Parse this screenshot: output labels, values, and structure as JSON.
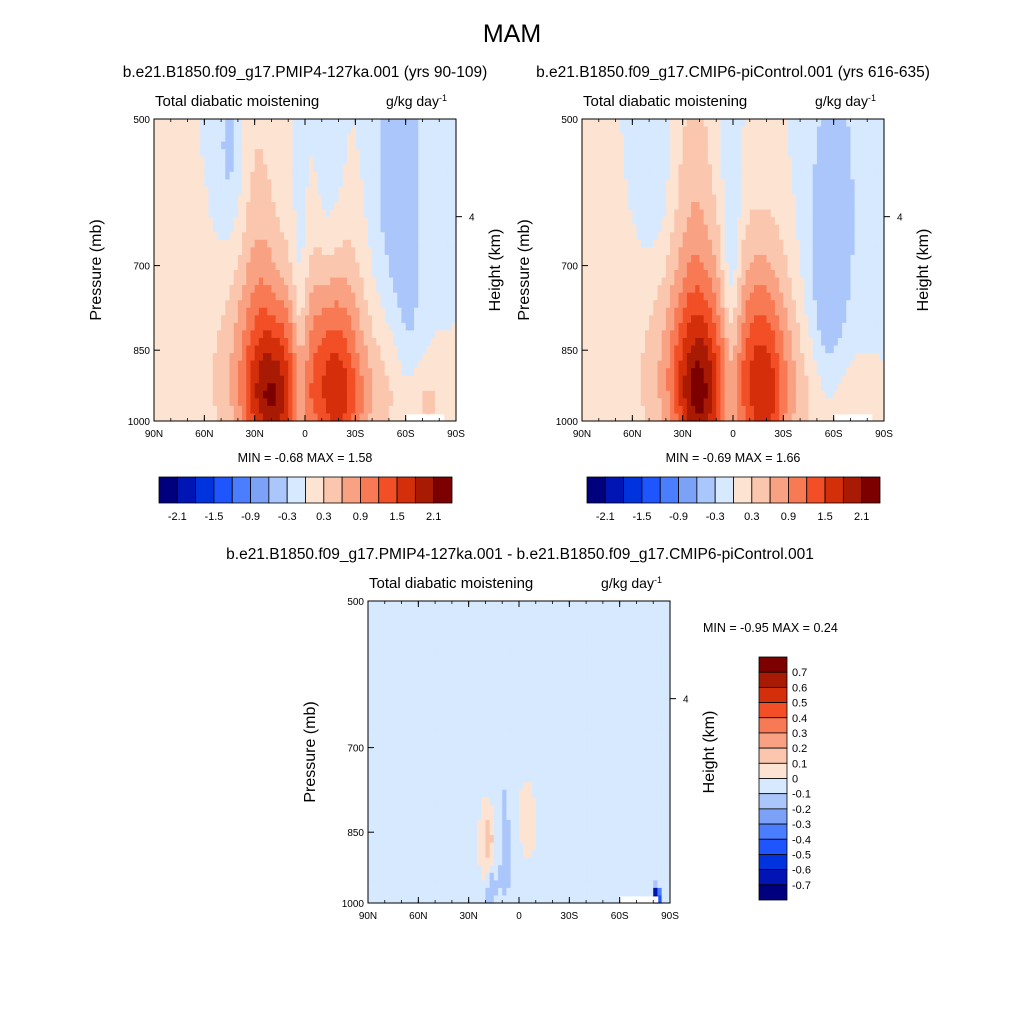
{
  "figure": {
    "title": "MAM"
  },
  "colors": {
    "left_palette": [
      "#00007f",
      "#0015b4",
      "#0033dd",
      "#1f55ff",
      "#4a7dff",
      "#7ba2f6",
      "#aac6fb",
      "#d7e9fe",
      "#fde4d2",
      "#fbc6ae",
      "#f9a283",
      "#f87a55",
      "#f24f26",
      "#d42f0b",
      "#a81a03",
      "#7d0000"
    ],
    "diff_palette": [
      "#00007f",
      "#0015b4",
      "#0033dd",
      "#1f55ff",
      "#4a7dff",
      "#7ba2f6",
      "#aac6fb",
      "#d7e9fe",
      "#fde4d2",
      "#fbc6ae",
      "#f9a283",
      "#f87a55",
      "#f24f26",
      "#d42f0b",
      "#a81a03",
      "#7d0000"
    ]
  },
  "chart_data": [
    {
      "id": "panel-a",
      "type": "heatmap",
      "subtitle": "b.e21.B1850.f09_g17.PMIP4-127ka.001 (yrs 90-109)",
      "left_string": "Total diabatic moistening",
      "right_string": "g/kg day",
      "right_string_sup": "-1",
      "ylabel": "Pressure (mb)",
      "y2label": "Height (km)",
      "y2ticks": [
        "4"
      ],
      "xticks": [
        "90N",
        "60N",
        "30N",
        "0",
        "30S",
        "60S",
        "90S"
      ],
      "yticks": [
        "500",
        "700",
        "850",
        "1000"
      ],
      "ylim": [
        1000,
        500
      ],
      "xlim": [
        90,
        -90
      ],
      "min_label": "MIN =  -0.68  MAX =   1.58",
      "colorbar_ticks": [
        "-2.1",
        "-1.5",
        "-0.9",
        "-0.3",
        "0.3",
        "0.9",
        "1.5",
        "2.1"
      ],
      "colorbar_levels": [
        -2.1,
        -1.8,
        -1.5,
        -1.2,
        -0.9,
        -0.6,
        -0.3,
        0,
        0.3,
        0.6,
        0.9,
        1.2,
        1.5,
        1.8,
        2.1
      ],
      "blobs": [
        {
          "lat": 18,
          "p": 930,
          "slat": 14,
          "sp": 140,
          "v": 1.5
        },
        {
          "lat": 21,
          "p": 960,
          "slat": 9,
          "sp": 70,
          "v": 0.4
        },
        {
          "lat": -18,
          "p": 910,
          "slat": 13,
          "sp": 160,
          "v": 1.45
        },
        {
          "lat": -24,
          "p": 960,
          "slat": 9,
          "sp": 70,
          "v": 0.3
        },
        {
          "lat": 28,
          "p": 680,
          "slat": 8,
          "sp": 200,
          "v": 0.35
        },
        {
          "lat": 40,
          "p": 900,
          "slat": 18,
          "sp": 150,
          "v": 0.35
        },
        {
          "lat": -48,
          "p": 940,
          "slat": 10,
          "sp": 100,
          "v": 0.3
        },
        {
          "lat": -73,
          "p": 960,
          "slat": 8,
          "sp": 60,
          "v": 0.35
        },
        {
          "lat": 3,
          "p": 850,
          "slat": 3.5,
          "sp": 180,
          "v": -0.55
        },
        {
          "lat": 45,
          "p": 540,
          "slat": 6,
          "sp": 90,
          "v": -0.4
        },
        {
          "lat": -55,
          "p": 580,
          "slat": 11,
          "sp": 160,
          "v": -0.5
        },
        {
          "lat": -62,
          "p": 760,
          "slat": 5,
          "sp": 150,
          "v": -0.25
        },
        {
          "lat": -15,
          "p": 590,
          "slat": 6,
          "sp": 120,
          "v": -0.3
        }
      ]
    },
    {
      "id": "panel-b",
      "type": "heatmap",
      "subtitle": "b.e21.B1850.f09_g17.CMIP6-piControl.001 (yrs 616-635)",
      "left_string": "Total diabatic moistening",
      "right_string": "g/kg day",
      "right_string_sup": "-1",
      "ylabel": "Pressure (mb)",
      "y2label": "Height (km)",
      "y2ticks": [
        "4"
      ],
      "xticks": [
        "90N",
        "60N",
        "30N",
        "0",
        "30S",
        "60S",
        "90S"
      ],
      "yticks": [
        "500",
        "700",
        "850",
        "1000"
      ],
      "ylim": [
        1000,
        500
      ],
      "xlim": [
        90,
        -90
      ],
      "min_label": "MIN =  -0.69  MAX =   1.66",
      "colorbar_ticks": [
        "-2.1",
        "-1.5",
        "-0.9",
        "-0.3",
        "0.3",
        "0.9",
        "1.5",
        "2.1"
      ],
      "colorbar_levels": [
        -2.1,
        -1.8,
        -1.5,
        -1.2,
        -0.9,
        -0.6,
        -0.3,
        0,
        0.3,
        0.6,
        0.9,
        1.2,
        1.5,
        1.8,
        2.1
      ],
      "blobs": [
        {
          "lat": 20,
          "p": 920,
          "slat": 13,
          "sp": 150,
          "v": 1.6
        },
        {
          "lat": 20,
          "p": 960,
          "slat": 8,
          "sp": 70,
          "v": 0.4
        },
        {
          "lat": -17,
          "p": 900,
          "slat": 13,
          "sp": 160,
          "v": 1.5
        },
        {
          "lat": -20,
          "p": 960,
          "slat": 8,
          "sp": 70,
          "v": 0.35
        },
        {
          "lat": 23,
          "p": 640,
          "slat": 9,
          "sp": 230,
          "v": 0.4
        },
        {
          "lat": 45,
          "p": 900,
          "slat": 18,
          "sp": 150,
          "v": 0.3
        },
        {
          "lat": -48,
          "p": 940,
          "slat": 10,
          "sp": 100,
          "v": 0.3
        },
        {
          "lat": -73,
          "p": 950,
          "slat": 8,
          "sp": 60,
          "v": 0.3
        },
        {
          "lat": 1,
          "p": 760,
          "slat": 4,
          "sp": 220,
          "v": -0.6
        },
        {
          "lat": 47,
          "p": 560,
          "slat": 7,
          "sp": 90,
          "v": -0.3
        },
        {
          "lat": -60,
          "p": 620,
          "slat": 13,
          "sp": 180,
          "v": -0.45
        },
        {
          "lat": -55,
          "p": 820,
          "slat": 7,
          "sp": 120,
          "v": -0.3
        }
      ]
    },
    {
      "id": "panel-c",
      "type": "heatmap",
      "subtitle": "b.e21.B1850.f09_g17.PMIP4-127ka.001 - b.e21.B1850.f09_g17.CMIP6-piControl.001",
      "left_string": "Total diabatic moistening",
      "right_string": "g/kg day",
      "right_string_sup": "-1",
      "ylabel": "Pressure (mb)",
      "y2label": "Height (km)",
      "y2ticks": [
        "4"
      ],
      "xticks": [
        "90N",
        "60N",
        "30N",
        "0",
        "30S",
        "60S",
        "90S"
      ],
      "yticks": [
        "500",
        "700",
        "850",
        "1000"
      ],
      "ylim": [
        1000,
        500
      ],
      "xlim": [
        90,
        -90
      ],
      "min_label": "MIN =  -0.95  MAX =   0.24",
      "colorbar_ticks": [
        "0.7",
        "0.6",
        "0.5",
        "0.4",
        "0.3",
        "0.2",
        "0.1",
        "0",
        "-0.1",
        "-0.2",
        "-0.3",
        "-0.4",
        "-0.5",
        "-0.6",
        "-0.7"
      ],
      "colorbar_levels": [
        -0.7,
        -0.6,
        -0.5,
        -0.4,
        -0.3,
        -0.2,
        -0.1,
        0,
        0.1,
        0.2,
        0.3,
        0.4,
        0.5,
        0.6,
        0.7
      ],
      "blobs": [
        {
          "lat": 10,
          "p": 700,
          "slat": 7,
          "sp": 260,
          "v": -0.08
        },
        {
          "lat": -25,
          "p": 620,
          "slat": 7,
          "sp": 160,
          "v": -0.07
        },
        {
          "lat": -70,
          "p": 700,
          "slat": 6,
          "sp": 350,
          "v": -0.07
        },
        {
          "lat": 55,
          "p": 900,
          "slat": 18,
          "sp": 110,
          "v": -0.06
        },
        {
          "lat": 8,
          "p": 940,
          "slat": 6,
          "sp": 120,
          "v": -0.06
        },
        {
          "lat": -50,
          "p": 930,
          "slat": 9,
          "sp": 100,
          "v": -0.06
        },
        {
          "lat": 18,
          "p": 870,
          "slat": 3,
          "sp": 50,
          "v": 0.22
        },
        {
          "lat": -3,
          "p": 830,
          "slat": 3,
          "sp": 40,
          "v": 0.08
        },
        {
          "lat": 17,
          "p": 960,
          "slat": 2,
          "sp": 40,
          "v": -0.15
        },
        {
          "lat": -82,
          "p": 985,
          "slat": 1.5,
          "sp": 15,
          "v": -0.9
        }
      ]
    }
  ]
}
